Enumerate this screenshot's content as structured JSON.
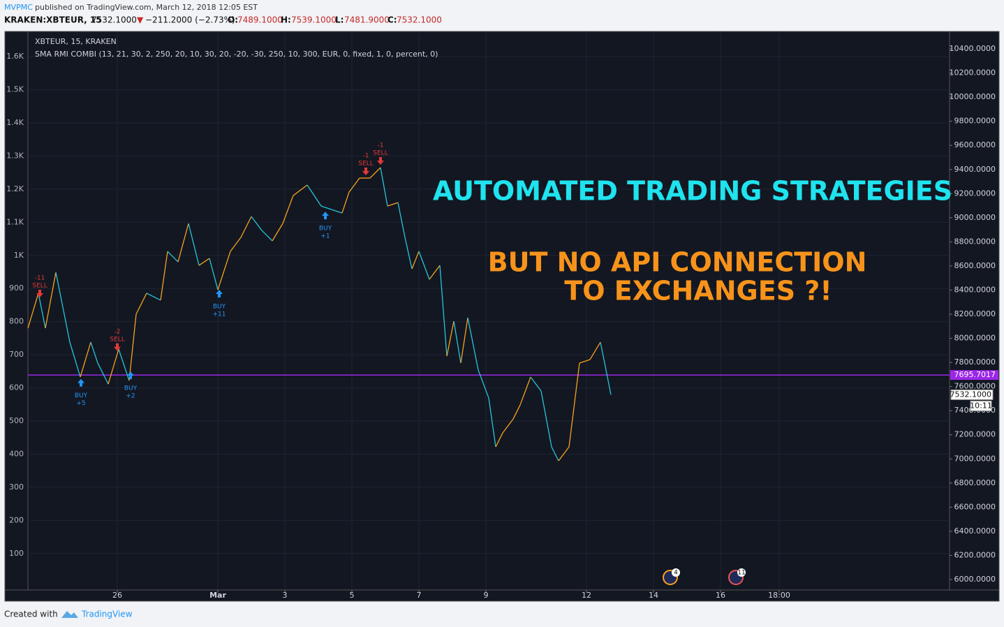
{
  "header": {
    "author": "MVPMC",
    "published": "published on TradingView.com, March 12, 2018 12:05 EST",
    "symbol": "KRAKEN:XBTEUR, 15",
    "last": "7532.1000",
    "arrow": "▼",
    "change": "−211.2000 (−2.73%)",
    "o_label": "O:",
    "o": "7489.1000",
    "h_label": "H:",
    "h": "7539.1000",
    "l_label": "L:",
    "l": "7481.9000",
    "c_label": "C:",
    "c": "7532.1000"
  },
  "chart_data": {
    "type": "line",
    "legend_title": "XBTEUR, 15, KRAKEN",
    "indicator": "SMA RMI COMBI (13, 21, 30, 2, 250, 20, 10, 30, 20, -20, -30, 250, 10, 300, EUR, 0, fixed, 1, 0, percent, 0)",
    "annotations": [
      "AUTOMATED TRADING STRATEGIES",
      "BUT NO API CONNECTION",
      "TO EXCHANGES ?!"
    ],
    "annotation_colors": [
      "#1fe3ee",
      "#f7931a",
      "#f7931a"
    ],
    "xlim": [
      "2018-02-23T08:00",
      "2018-03-22T20:00"
    ],
    "xticks": [
      {
        "value": "2018-02-26T00:00",
        "label": "26"
      },
      {
        "value": "2018-03-01T00:00",
        "label": "Mar"
      },
      {
        "value": "2018-03-03T00:00",
        "label": "3"
      },
      {
        "value": "2018-03-05T00:00",
        "label": "5"
      },
      {
        "value": "2018-03-07T00:00",
        "label": "7"
      },
      {
        "value": "2018-03-09T00:00",
        "label": "9"
      },
      {
        "value": "2018-03-12T00:00",
        "label": "12"
      },
      {
        "value": "2018-03-14T00:00",
        "label": "14"
      },
      {
        "value": "2018-03-16T00:00",
        "label": "16"
      },
      {
        "value": "2018-03-17T18:00",
        "label": "18:00"
      }
    ],
    "ylim": [
      -10,
      1676
    ],
    "yticks": [
      100,
      200,
      300,
      400,
      500,
      600,
      700,
      800,
      900,
      {
        "value": 1000,
        "label": "1K"
      },
      {
        "value": 1100,
        "label": "1.1K"
      },
      {
        "value": 1200,
        "label": "1.2K"
      },
      {
        "value": 1300,
        "label": "1.3K"
      },
      {
        "value": 1400,
        "label": "1.4K"
      },
      {
        "value": 1500,
        "label": "1.5K"
      },
      {
        "value": 1600,
        "label": "1.6K"
      }
    ],
    "y2lim": [
      5913,
      10545
    ],
    "y2ticks": [
      {
        "value": 6000,
        "label": "6000.0000"
      },
      {
        "value": 6200,
        "label": "6200.0000"
      },
      {
        "value": 6400,
        "label": "6400.0000"
      },
      {
        "value": 6600,
        "label": "6600.0000"
      },
      {
        "value": 6800,
        "label": "6800.0000"
      },
      {
        "value": 7000,
        "label": "7000.0000"
      },
      {
        "value": 7200,
        "label": "7200.0000"
      },
      {
        "value": 7400,
        "label": "7400.0000"
      },
      {
        "value": 7600,
        "label": "7600.0000"
      },
      {
        "value": 7800,
        "label": "7800.0000"
      },
      {
        "value": 8000,
        "label": "8000.0000"
      },
      {
        "value": 8200,
        "label": "8200.0000"
      },
      {
        "value": 8400,
        "label": "8400.0000"
      },
      {
        "value": 8600,
        "label": "8600.0000"
      },
      {
        "value": 8800,
        "label": "8800.0000"
      },
      {
        "value": 9000,
        "label": "9000.0000"
      },
      {
        "value": 9200,
        "label": "9200.0000"
      },
      {
        "value": 9400,
        "label": "9400.0000"
      },
      {
        "value": 9600,
        "label": "9600.0000"
      },
      {
        "value": 9800,
        "label": "9800.0000"
      },
      {
        "value": 10000,
        "label": "10000.0000"
      },
      {
        "value": 10200,
        "label": "10200.0000"
      },
      {
        "value": 10400,
        "label": "10400.0000"
      }
    ],
    "grid": true,
    "x": [
      "2018-02-23T08:00",
      "2018-02-23T15:30",
      "2018-02-23T20:30",
      "2018-02-24T04:00",
      "2018-02-24T09:00",
      "2018-02-24T14:00",
      "2018-02-24T21:30",
      "2018-02-25T05:00",
      "2018-02-25T10:00",
      "2018-02-25T17:30",
      "2018-02-26T01:00",
      "2018-02-26T08:30",
      "2018-02-26T13:30",
      "2018-02-26T21:00",
      "2018-02-27T07:00",
      "2018-02-27T12:00",
      "2018-02-27T19:30",
      "2018-02-28T03:00",
      "2018-02-28T10:30",
      "2018-02-28T18:00",
      "2018-03-01T00:00",
      "2018-03-01T09:00",
      "2018-03-01T16:30",
      "2018-03-02T00:00",
      "2018-03-02T07:30",
      "2018-03-02T15:00",
      "2018-03-02T22:30",
      "2018-03-03T06:00",
      "2018-03-03T16:00",
      "2018-03-04T02:00",
      "2018-03-04T09:30",
      "2018-03-04T17:00",
      "2018-03-04T22:00",
      "2018-03-05T05:30",
      "2018-03-05T13:00",
      "2018-03-05T20:30",
      "2018-03-06T01:30",
      "2018-03-06T09:00",
      "2018-03-06T14:00",
      "2018-03-06T19:00",
      "2018-03-07T00:00",
      "2018-03-07T07:30",
      "2018-03-07T15:00",
      "2018-03-07T20:00",
      "2018-03-08T01:00",
      "2018-03-08T06:00",
      "2018-03-08T11:00",
      "2018-03-08T18:30",
      "2018-03-09T02:00",
      "2018-03-09T07:00",
      "2018-03-09T12:00",
      "2018-03-09T19:30",
      "2018-03-10T00:30",
      "2018-03-10T08:00",
      "2018-03-10T15:30",
      "2018-03-10T23:00",
      "2018-03-11T04:00",
      "2018-03-11T11:30",
      "2018-03-11T19:00",
      "2018-03-12T02:30",
      "2018-03-12T10:00",
      "2018-03-12T15:00",
      "2018-03-12T17:30"
    ],
    "series": [
      {
        "name": "XBTEUR",
        "axis": "y2",
        "up_color": "#f7a21b",
        "down_color": "#26c6da",
        "values": [
          8084,
          8374,
          8084,
          8547,
          8258,
          7968,
          7679,
          7968,
          7795,
          7621,
          7910,
          7650,
          8200,
          8374,
          8316,
          8721,
          8634,
          8952,
          8605,
          8663,
          8402,
          8721,
          8837,
          9010,
          8895,
          8808,
          8952,
          9184,
          9271,
          9097,
          9068,
          9039,
          9213,
          9329,
          9329,
          9416,
          9097,
          9126,
          8837,
          8576,
          8721,
          8489,
          8605,
          7852,
          8142,
          7795,
          8171,
          7737,
          7505,
          7100,
          7216,
          7331,
          7447,
          7679,
          7563,
          7100,
          6984,
          7100,
          7795,
          7824,
          7968,
          7679,
          7532.1
        ]
      }
    ],
    "hline": {
      "value": 7695.7017,
      "label": "7695.7017",
      "color": "#9c27e8"
    },
    "last_label": "7532.1000",
    "countdown": "10:11",
    "signals": [
      {
        "x": "2018-02-23T16:30",
        "side": "SELL",
        "qty": "-11"
      },
      {
        "x": "2018-02-24T22:00",
        "side": "BUY",
        "qty": "+5"
      },
      {
        "x": "2018-02-26T00:00",
        "side": "SELL",
        "qty": "-2"
      },
      {
        "x": "2018-02-26T09:30",
        "side": "BUY",
        "qty": "+2"
      },
      {
        "x": "2018-03-01T01:00",
        "side": "BUY",
        "qty": "+11"
      },
      {
        "x": "2018-03-04T05:00",
        "side": "BUY",
        "qty": "+1"
      },
      {
        "x": "2018-03-05T10:00",
        "side": "SELL",
        "qty": "-1"
      },
      {
        "x": "2018-03-05T20:30",
        "side": "SELL",
        "qty": "-1"
      }
    ],
    "events": [
      {
        "x": "2018-03-14T12:00",
        "count": "4",
        "color": "#f7a21b"
      },
      {
        "x": "2018-03-16T11:00",
        "count": "11",
        "color": "#ef5350"
      }
    ]
  },
  "footer": {
    "created": "Created with",
    "brand": "TradingView"
  }
}
